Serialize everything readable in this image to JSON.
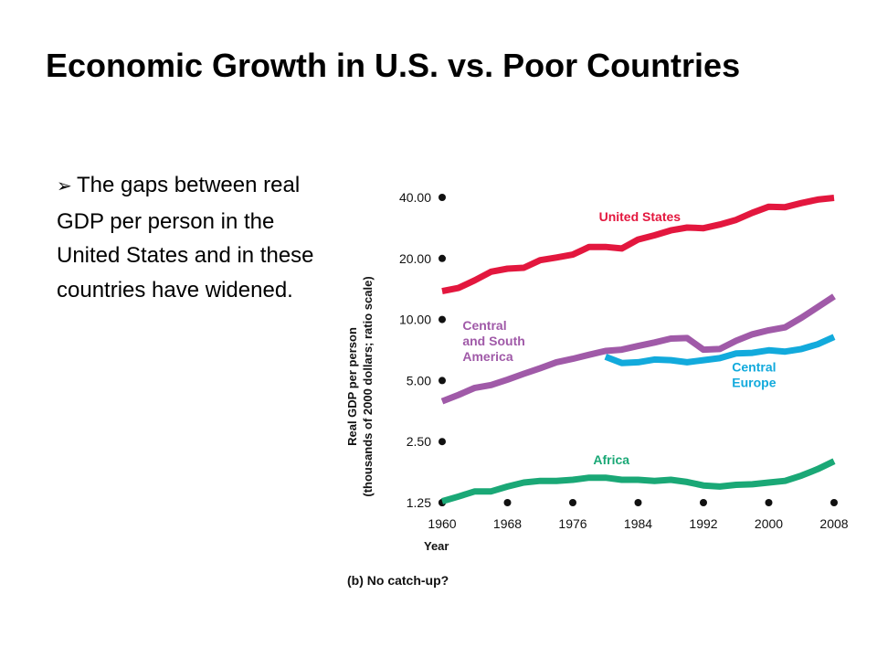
{
  "slide": {
    "title": "Economic Growth in U.S. vs. Poor Countries",
    "bullet_icon": "arrow-bullet-icon",
    "bullet_glyph": "➢",
    "bullet_text": "The gaps between real GDP per person in the United States and in these countries have widened."
  },
  "chart_data": {
    "type": "line",
    "caption": "(b) No catch-up?",
    "xlabel": "Year",
    "ylabel_line1": "Real GDP per person",
    "ylabel_line2": "(thousands of 2000 dollars; ratio scale)",
    "y_scale": "log",
    "xlim": [
      1960,
      2008
    ],
    "ylim": [
      1.25,
      40
    ],
    "x_ticks": [
      1960,
      1968,
      1976,
      1984,
      1992,
      2000,
      2008
    ],
    "x_tick_labels": [
      "1960",
      "1968",
      "1976",
      "1984",
      "1992",
      "2000",
      "2008"
    ],
    "y_ticks": [
      1.25,
      2.5,
      5,
      10,
      20,
      40
    ],
    "y_tick_labels": [
      "1.25",
      "2.50",
      "5.00",
      "10.00",
      "20.00",
      "40.00"
    ],
    "grid": false,
    "legend": "inline labels",
    "series": [
      {
        "name": "United States",
        "label_lines": [
          "United States"
        ],
        "color": "#e3173e",
        "x": [
          1960,
          1962,
          1964,
          1966,
          1968,
          1970,
          1972,
          1974,
          1976,
          1978,
          1980,
          1982,
          1984,
          1986,
          1988,
          1990,
          1992,
          1994,
          1996,
          1998,
          2000,
          2002,
          2004,
          2006,
          2008
        ],
        "y": [
          13.8,
          14.3,
          15.6,
          17.2,
          17.8,
          18.0,
          19.6,
          20.2,
          20.9,
          22.8,
          22.8,
          22.4,
          24.8,
          26.0,
          27.5,
          28.4,
          28.2,
          29.4,
          31.0,
          33.6,
          36.0,
          35.8,
          37.5,
          39.0,
          39.8
        ]
      },
      {
        "name": "Central and South America",
        "label_lines": [
          "Central",
          "and South",
          "America"
        ],
        "color": "#a05aa8",
        "x": [
          1960,
          1962,
          1964,
          1966,
          1968,
          1970,
          1972,
          1974,
          1976,
          1978,
          1980,
          1982,
          1984,
          1986,
          1988,
          1990,
          1992,
          1994,
          1996,
          1998,
          2000,
          2002,
          2004,
          2006,
          2008
        ],
        "y": [
          3.95,
          4.25,
          4.6,
          4.75,
          5.05,
          5.4,
          5.75,
          6.15,
          6.4,
          6.7,
          7.0,
          7.1,
          7.4,
          7.7,
          8.05,
          8.1,
          7.1,
          7.15,
          7.85,
          8.45,
          8.85,
          9.15,
          10.2,
          11.5,
          13.0
        ]
      },
      {
        "name": "Central Europe",
        "label_lines": [
          "Central",
          "Europe"
        ],
        "color": "#12aadc",
        "x": [
          1980,
          1982,
          1984,
          1986,
          1988,
          1990,
          1992,
          1994,
          1996,
          1998,
          2000,
          2002,
          2004,
          2006,
          2008
        ],
        "y": [
          6.55,
          6.1,
          6.15,
          6.35,
          6.3,
          6.15,
          6.3,
          6.45,
          6.8,
          6.85,
          7.05,
          6.95,
          7.15,
          7.55,
          8.2
        ]
      },
      {
        "name": "Africa",
        "label_lines": [
          "Africa"
        ],
        "color": "#1aa876",
        "x": [
          1960,
          1962,
          1964,
          1966,
          1968,
          1970,
          1972,
          1974,
          1976,
          1978,
          1980,
          1982,
          1984,
          1986,
          1988,
          1990,
          1992,
          1994,
          1996,
          1998,
          2000,
          2002,
          2004,
          2006,
          2008
        ],
        "y": [
          1.27,
          1.34,
          1.42,
          1.42,
          1.5,
          1.57,
          1.6,
          1.6,
          1.62,
          1.66,
          1.66,
          1.62,
          1.62,
          1.6,
          1.62,
          1.58,
          1.52,
          1.5,
          1.53,
          1.54,
          1.57,
          1.6,
          1.7,
          1.83,
          2.0
        ]
      }
    ]
  }
}
